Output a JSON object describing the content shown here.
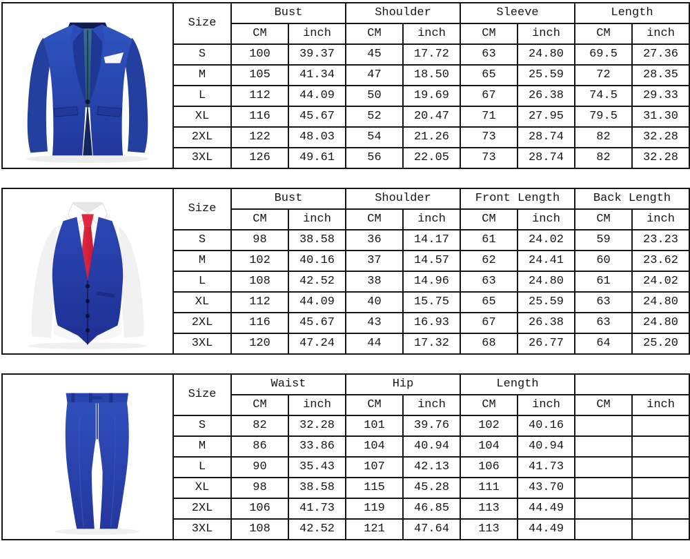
{
  "page": {
    "border_color": "#161616",
    "background": "#ffffff"
  },
  "size_column_header": "Size",
  "units_row": [
    "CM",
    "inch"
  ],
  "garment_colors": {
    "royal_blue": "#2a48ae",
    "dark_blue": "#1d3190",
    "lining_steel_blue": "#33678c",
    "tie_red": "#d81f38",
    "shirt_white": "#f7f7f7",
    "button_navy": "#0c1535"
  },
  "sections": [
    {
      "garment": "suit-jacket",
      "image": "suit-jacket-photo",
      "groups": [
        "Bust",
        "Shoulder",
        "Sleeve",
        "Length"
      ],
      "rows": [
        {
          "size": "S",
          "values": [
            "100",
            "39.37",
            "45",
            "17.72",
            "63",
            "24.80",
            "69.5",
            "27.36"
          ]
        },
        {
          "size": "M",
          "values": [
            "105",
            "41.34",
            "47",
            "18.50",
            "65",
            "25.59",
            "72",
            "28.35"
          ]
        },
        {
          "size": "L",
          "values": [
            "112",
            "44.09",
            "50",
            "19.69",
            "67",
            "26.38",
            "74.5",
            "29.33"
          ]
        },
        {
          "size": "XL",
          "values": [
            "116",
            "45.67",
            "52",
            "20.47",
            "71",
            "27.95",
            "79.5",
            "31.30"
          ]
        },
        {
          "size": "2XL",
          "values": [
            "122",
            "48.03",
            "54",
            "21.26",
            "73",
            "28.74",
            "82",
            "32.28"
          ]
        },
        {
          "size": "3XL",
          "values": [
            "126",
            "49.61",
            "56",
            "22.05",
            "73",
            "28.74",
            "82",
            "32.28"
          ]
        }
      ]
    },
    {
      "garment": "suit-vest",
      "image": "vest-shirt-tie-photo",
      "groups": [
        "Bust",
        "Shoulder",
        "Front Length",
        "Back Length"
      ],
      "rows": [
        {
          "size": "S",
          "values": [
            "98",
            "38.58",
            "36",
            "14.17",
            "61",
            "24.02",
            "59",
            "23.23"
          ]
        },
        {
          "size": "M",
          "values": [
            "102",
            "40.16",
            "37",
            "14.57",
            "62",
            "24.41",
            "60",
            "23.62"
          ]
        },
        {
          "size": "L",
          "values": [
            "108",
            "42.52",
            "38",
            "14.96",
            "63",
            "24.80",
            "61",
            "24.02"
          ]
        },
        {
          "size": "XL",
          "values": [
            "112",
            "44.09",
            "40",
            "15.75",
            "65",
            "25.59",
            "63",
            "24.80"
          ]
        },
        {
          "size": "2XL",
          "values": [
            "116",
            "45.67",
            "43",
            "16.93",
            "67",
            "26.38",
            "63",
            "24.80"
          ]
        },
        {
          "size": "3XL",
          "values": [
            "120",
            "47.24",
            "44",
            "17.32",
            "68",
            "26.77",
            "64",
            "25.20"
          ]
        }
      ]
    },
    {
      "garment": "suit-pants",
      "image": "suit-pants-photo",
      "groups": [
        "Waist",
        "Hip",
        "Length",
        ""
      ],
      "rows": [
        {
          "size": "S",
          "values": [
            "82",
            "32.28",
            "101",
            "39.76",
            "102",
            "40.16",
            "",
            ""
          ]
        },
        {
          "size": "M",
          "values": [
            "86",
            "33.86",
            "104",
            "40.94",
            "104",
            "40.94",
            "",
            ""
          ]
        },
        {
          "size": "L",
          "values": [
            "90",
            "35.43",
            "107",
            "42.13",
            "106",
            "41.73",
            "",
            ""
          ]
        },
        {
          "size": "XL",
          "values": [
            "98",
            "38.58",
            "115",
            "45.28",
            "111",
            "43.70",
            "",
            ""
          ]
        },
        {
          "size": "2XL",
          "values": [
            "106",
            "41.73",
            "119",
            "46.85",
            "113",
            "44.49",
            "",
            ""
          ]
        },
        {
          "size": "3XL",
          "values": [
            "108",
            "42.52",
            "121",
            "47.64",
            "113",
            "44.49",
            "",
            ""
          ]
        }
      ]
    }
  ]
}
